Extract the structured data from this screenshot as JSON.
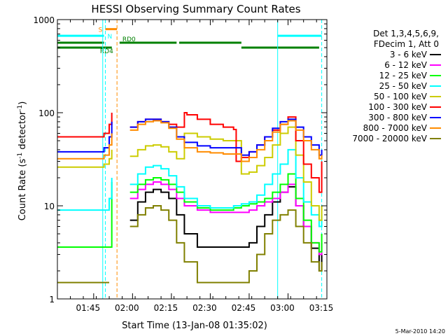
{
  "chart_data": {
    "type": "line",
    "title": "HESSI Observing Summary Count Rates",
    "xlabel": "Start Time (13-Jan-08 01:35:02)",
    "ylabel_main": "Count Rate (s",
    "ylabel_sup1": "-1",
    "ylabel_mid": " detector",
    "ylabel_sup2": "-1",
    "ylabel_end": ")",
    "y_scale": "log",
    "ylim": [
      1,
      1000
    ],
    "xlim_minutes": [
      -4,
      100
    ],
    "x_ticks": [
      {
        "minute": 10,
        "label": "01:45"
      },
      {
        "minute": 25,
        "label": "02:00"
      },
      {
        "minute": 40,
        "label": "02:15"
      },
      {
        "minute": 55,
        "label": "02:30"
      },
      {
        "minute": 70,
        "label": "02:45"
      },
      {
        "minute": 85,
        "label": "03:00"
      },
      {
        "minute": 100,
        "label": "03:15"
      }
    ],
    "y_ticks": [
      {
        "value": 1,
        "label": "1"
      },
      {
        "value": 10,
        "label": "10"
      },
      {
        "value": 100,
        "label": "100"
      },
      {
        "value": 1000,
        "label": "1000"
      }
    ],
    "legend_header": [
      "Det 1,3,4,5,6,9,",
      "FDecim 1, Att 0"
    ],
    "legend_position": "right",
    "series": [
      {
        "name": "3 - 6 keV",
        "color": "#000000",
        "x": [
          -4,
          10,
          16,
          18,
          21,
          24,
          27,
          30,
          33,
          36,
          39,
          42,
          45,
          50,
          55,
          60,
          64,
          67,
          70,
          73,
          76,
          79,
          82,
          85,
          88,
          91,
          94,
          97,
          98
        ],
        "y": [
          0,
          0,
          0,
          0,
          0,
          7,
          11,
          14,
          15,
          14,
          12,
          8,
          5,
          3.6,
          3.6,
          3.6,
          3.6,
          3.6,
          4,
          6,
          8,
          11,
          14,
          16,
          10,
          6,
          3.5,
          2,
          3
        ]
      },
      {
        "name": "6 - 12 keV",
        "color": "#ff00ff",
        "x": [
          -4,
          10,
          16,
          18,
          21,
          24,
          27,
          30,
          33,
          36,
          39,
          42,
          45,
          50,
          55,
          60,
          64,
          67,
          70,
          73,
          76,
          79,
          82,
          85,
          88,
          91,
          94,
          97,
          98
        ],
        "y": [
          0,
          0,
          0,
          0,
          0,
          12,
          15,
          17,
          18,
          17,
          15,
          12,
          10,
          9,
          8.5,
          8.5,
          8.5,
          8.5,
          9,
          10,
          11,
          12,
          14,
          17,
          10,
          6,
          4,
          3,
          4
        ]
      },
      {
        "name": "12 - 25 keV",
        "color": "#00ff00",
        "x": [
          -4,
          10,
          16,
          17,
          18,
          21,
          24,
          27,
          30,
          33,
          36,
          39,
          42,
          45,
          50,
          55,
          60,
          64,
          67,
          70,
          73,
          76,
          79,
          82,
          85,
          88,
          91,
          94,
          97,
          98
        ],
        "y": [
          3.6,
          3.6,
          3.6,
          18,
          0,
          0,
          14,
          17,
          19,
          20,
          19,
          17,
          14,
          11,
          9.5,
          9,
          9,
          9.5,
          10,
          10.5,
          11,
          12,
          14,
          17,
          22,
          12,
          7,
          4,
          3.2,
          5
        ]
      },
      {
        "name": "25 - 50 keV",
        "color": "#00ffff",
        "x": [
          -4,
          10,
          14,
          16,
          17,
          18,
          21,
          24,
          27,
          30,
          33,
          36,
          39,
          42,
          45,
          50,
          55,
          60,
          64,
          67,
          70,
          73,
          76,
          79,
          82,
          85,
          88,
          91,
          94,
          97,
          98
        ],
        "y": [
          9,
          9,
          9,
          12,
          20,
          0,
          0,
          17,
          22,
          26,
          27,
          25,
          21,
          16,
          12,
          10,
          9.5,
          9.5,
          10,
          10.5,
          11,
          13,
          17,
          22,
          28,
          40,
          20,
          11,
          8,
          6,
          8
        ]
      },
      {
        "name": "50 - 100 keV",
        "color": "#cccc00",
        "x": [
          -4,
          10,
          14,
          16,
          17,
          18,
          21,
          24,
          27,
          30,
          33,
          36,
          39,
          42,
          45,
          50,
          55,
          60,
          64,
          67,
          70,
          73,
          76,
          79,
          82,
          85,
          88,
          91,
          94,
          97,
          98
        ],
        "y": [
          26,
          26,
          28,
          32,
          40,
          0,
          0,
          34,
          40,
          44,
          45,
          43,
          38,
          32,
          60,
          55,
          52,
          50,
          50,
          22,
          23,
          27,
          33,
          45,
          60,
          70,
          35,
          18,
          10,
          7,
          10
        ]
      },
      {
        "name": "100 - 300 keV",
        "color": "#ff0000",
        "x": [
          -4,
          10,
          14,
          16,
          17,
          18,
          21,
          24,
          27,
          30,
          33,
          36,
          39,
          42,
          45,
          46,
          50,
          55,
          60,
          64,
          65,
          67,
          70,
          73,
          76,
          79,
          82,
          85,
          88,
          91,
          94,
          97,
          98
        ],
        "y": [
          55,
          55,
          60,
          75,
          100,
          0,
          0,
          70,
          80,
          85,
          85,
          80,
          75,
          70,
          100,
          95,
          85,
          75,
          70,
          66,
          30,
          33,
          38,
          45,
          55,
          65,
          75,
          90,
          50,
          28,
          20,
          14,
          30
        ]
      },
      {
        "name": "300 - 800 keV",
        "color": "#0000ff",
        "x": [
          -4,
          10,
          14,
          16,
          17,
          18,
          21,
          24,
          27,
          30,
          33,
          36,
          39,
          42,
          45,
          50,
          55,
          60,
          64,
          67,
          70,
          73,
          76,
          79,
          82,
          85,
          88,
          91,
          94,
          97,
          98
        ],
        "y": [
          38,
          38,
          42,
          55,
          80,
          0,
          0,
          70,
          80,
          85,
          85,
          80,
          70,
          55,
          48,
          44,
          42,
          42,
          42,
          35,
          38,
          45,
          55,
          68,
          80,
          85,
          70,
          55,
          45,
          35,
          40
        ]
      },
      {
        "name": "800 - 7000 keV",
        "color": "#ff8c00",
        "x": [
          -4,
          10,
          14,
          16,
          17,
          18,
          21,
          24,
          27,
          30,
          33,
          36,
          39,
          42,
          45,
          50,
          55,
          60,
          64,
          67,
          70,
          73,
          76,
          79,
          82,
          85,
          88,
          91,
          94,
          97,
          98
        ],
        "y": [
          32,
          32,
          35,
          45,
          60,
          0,
          0,
          65,
          75,
          80,
          82,
          78,
          68,
          52,
          42,
          38,
          37,
          36,
          36,
          30,
          33,
          40,
          50,
          62,
          75,
          82,
          65,
          50,
          40,
          32,
          35
        ]
      },
      {
        "name": "7000 - 20000 keV",
        "color": "#808000",
        "x": [
          -4,
          10,
          16,
          18,
          21,
          24,
          27,
          30,
          33,
          36,
          39,
          42,
          45,
          50,
          55,
          60,
          64,
          67,
          70,
          73,
          76,
          79,
          82,
          85,
          88,
          91,
          94,
          97,
          98
        ],
        "y": [
          1.5,
          1.5,
          1.5,
          0,
          0,
          6,
          8,
          9.5,
          10,
          9,
          7,
          4,
          2.5,
          1.5,
          1.5,
          1.5,
          1.5,
          1.5,
          2,
          3,
          5,
          7,
          8,
          9,
          6,
          4,
          2.5,
          2,
          2.5
        ]
      }
    ],
    "flags": [
      {
        "label": "S",
        "color": "#ff8c00",
        "x_start": 14.5,
        "x_end": 19,
        "level": 790
      },
      {
        "label": "N",
        "color": "#00ffff",
        "x_start": -4,
        "x_end": 14,
        "level": 670
      },
      {
        "label": "N",
        "color": "#00ffff",
        "x_start": 81,
        "x_end": 98,
        "level": 670
      },
      {
        "label": "RD0",
        "color": "#008000",
        "x_start": -4,
        "x_end": 14,
        "level": 565
      },
      {
        "label": "RD0",
        "color": "#008000",
        "x_start": 20,
        "x_end": 42,
        "level": 565
      },
      {
        "label": "RD0",
        "color": "#008000",
        "x_start": 43,
        "x_end": 67,
        "level": 565
      },
      {
        "label": "RD4",
        "color": "#008000",
        "x_start": -4,
        "x_end": 17,
        "level": 500
      },
      {
        "label": "RD4",
        "color": "#008000",
        "x_start": 67,
        "x_end": 97,
        "level": 500
      }
    ],
    "flag_labels": [
      {
        "text": "S",
        "color": "#ff8c00"
      },
      {
        "text": "N",
        "color": "#00ffff"
      },
      {
        "text": "RD0",
        "color": "#008000"
      },
      {
        "text": "RD4",
        "color": "#008000"
      }
    ],
    "vlines": [
      {
        "x": 13.5,
        "color": "#00ffff",
        "style": "solid"
      },
      {
        "x": 14.5,
        "color": "#00ffff",
        "style": "dashed"
      },
      {
        "x": 19,
        "color": "#ff8c00",
        "style": "dashed"
      },
      {
        "x": 81,
        "color": "#00ffff",
        "style": "solid"
      },
      {
        "x": 98,
        "color": "#00ffff",
        "style": "dashed"
      }
    ],
    "footer_stamp": "5-Mar-2010 14:20"
  }
}
